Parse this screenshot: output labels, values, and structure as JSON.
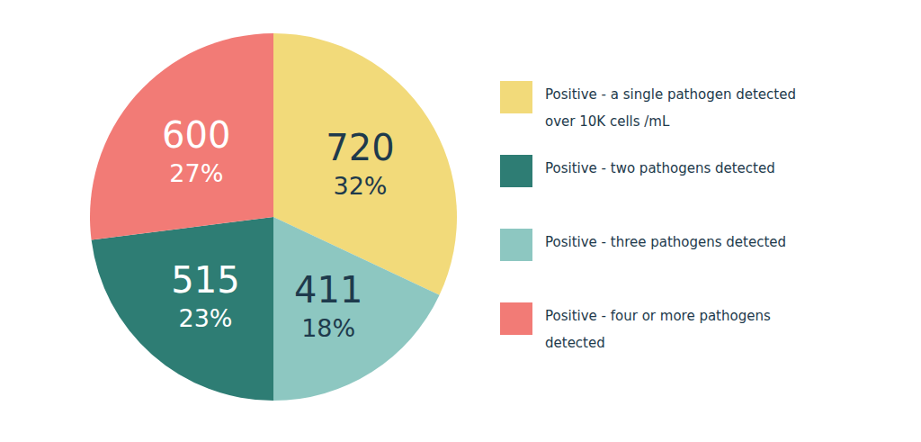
{
  "chart_data": {
    "type": "pie",
    "categories": [
      "Positive - a single pathogen detected over 10K cells /mL",
      "Positive - two pathogens detected",
      "Positive - three pathogens detected",
      "Positive - four or more pathogens detected"
    ],
    "values": [
      32,
      23,
      18,
      27
    ],
    "value_labels": [
      "32%",
      "23%",
      "18%",
      "27%"
    ],
    "counts": [
      720,
      515,
      411,
      600
    ],
    "colors": [
      "#f2da7a",
      "#2e7d74",
      "#8dc7c1",
      "#f27b76"
    ],
    "data_labels": true,
    "legend": "right"
  }
}
